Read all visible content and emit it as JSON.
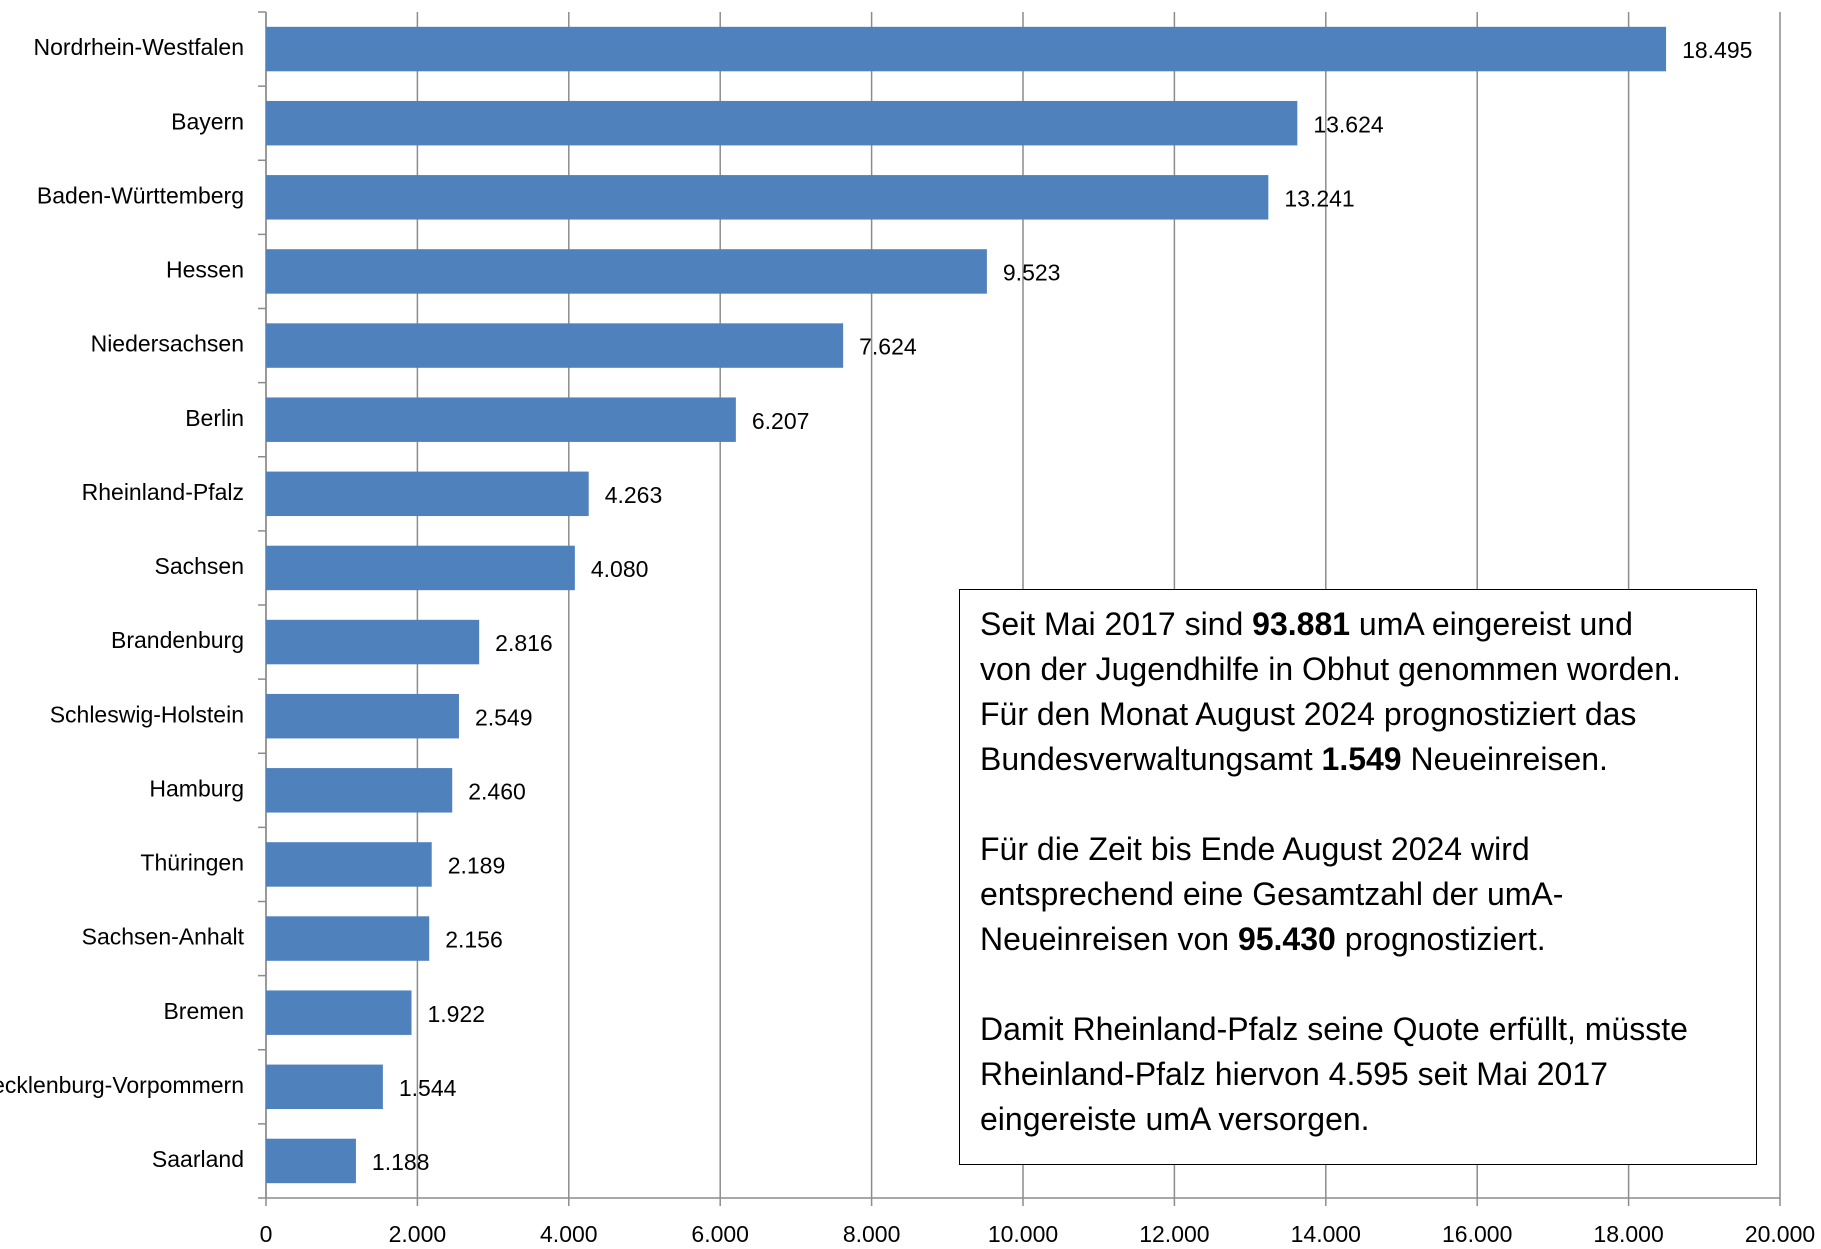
{
  "chart_data": {
    "type": "hbar",
    "categories": [
      "Nordrhein-Westfalen",
      "Bayern",
      "Baden-Württemberg",
      "Hessen",
      "Niedersachsen",
      "Berlin",
      "Rheinland-Pfalz",
      "Sachsen",
      "Brandenburg",
      "Schleswig-Holstein",
      "Hamburg",
      "Thüringen",
      "Sachsen-Anhalt",
      "Bremen",
      "Mecklenburg-Vorpommern",
      "Saarland"
    ],
    "values": [
      18495,
      13624,
      13241,
      9523,
      7624,
      6207,
      4263,
      4080,
      2816,
      2549,
      2460,
      2189,
      2156,
      1922,
      1544,
      1188
    ],
    "value_labels": [
      "18.495",
      "13.624",
      "13.241",
      "9.523",
      "7.624",
      "6.207",
      "4.263",
      "4.080",
      "2.816",
      "2.549",
      "2.460",
      "2.189",
      "2.156",
      "1.922",
      "1.544",
      "1.188"
    ],
    "color": "#4f81bd",
    "xlim": [
      0,
      20000
    ],
    "xticks": [
      0,
      {
        "value": 2000,
        "label": "2.000"
      },
      {
        "value": 4000,
        "label": "4.000"
      },
      {
        "value": 6000,
        "label": "6.000"
      },
      {
        "value": 8000,
        "label": "8.000"
      },
      {
        "value": 10000,
        "label": "10.000"
      },
      {
        "value": 12000,
        "label": "12.000"
      },
      {
        "value": 14000,
        "label": "14.000"
      },
      {
        "value": 16000,
        "label": "16.000"
      },
      {
        "value": 18000,
        "label": "18.000"
      },
      {
        "value": 20000,
        "label": "20.000"
      }
    ],
    "grid": true,
    "annotation": [
      [
        [
          {
            "text": "Seit Mai 2017 sind "
          },
          {
            "text": "93.881",
            "bold": true
          },
          {
            "text": " umA eingereist und"
          }
        ],
        [
          {
            "text": "von der Jugendhilfe in Obhut genommen worden."
          }
        ],
        [
          {
            "text": "Für den Monat August 2024 prognostiziert das"
          }
        ],
        [
          {
            "text": "Bundesverwaltungsamt "
          },
          {
            "text": "1.549",
            "bold": true
          },
          {
            "text": " Neueinreisen."
          }
        ]
      ],
      [
        [
          {
            "text": "Für die Zeit bis Ende August 2024 wird"
          }
        ],
        [
          {
            "text": "entsprechend eine Gesamtzahl der umA-"
          }
        ],
        [
          {
            "text": "Neueinreisen von "
          },
          {
            "text": "95.430",
            "bold": true
          },
          {
            "text": " prognostiziert."
          }
        ]
      ],
      [
        [
          {
            "text": "Damit Rheinland-Pfalz seine Quote erfüllt, müsste"
          }
        ],
        [
          {
            "text": "Rheinland-Pfalz hiervon 4.595 seit Mai 2017"
          }
        ],
        [
          {
            "text": "eingereiste umA versorgen."
          }
        ]
      ]
    ]
  }
}
